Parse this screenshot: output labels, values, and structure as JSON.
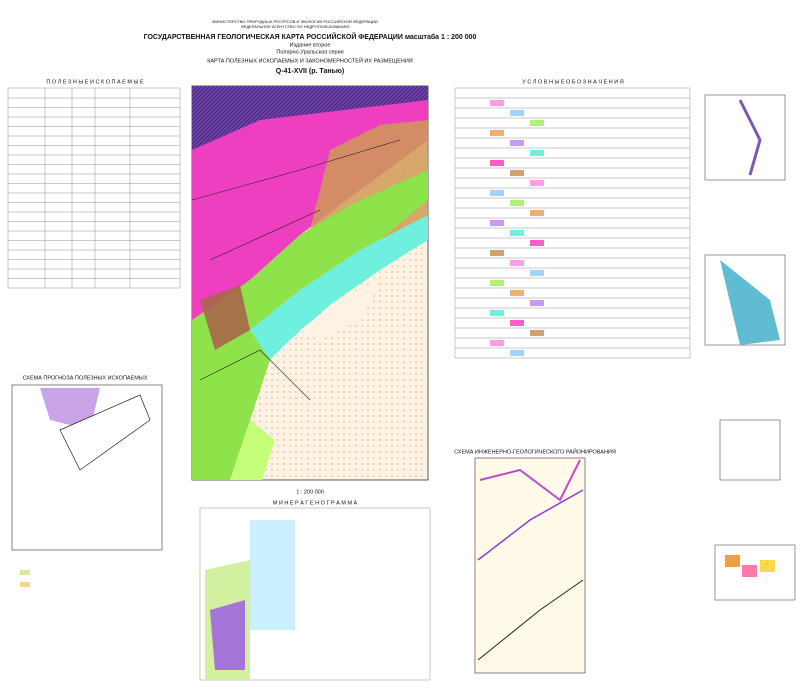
{
  "header": {
    "ministry": "МИНИСТЕРСТВО ПРИРОДНЫХ РЕСУРСОВ И ЭКОЛОГИИ РОССИЙСКОЙ ФЕДЕРАЦИИ",
    "agency": "ФЕДЕРАЛЬНОЕ АГЕНТСТВО ПО НЕДРОПОЛЬЗОВАНИЮ",
    "title": "ГОСУДАРСТВЕННАЯ ГЕОЛОГИЧЕСКАЯ КАРТА РОССИЙСКОЙ ФЕДЕРАЦИИ масштаба 1 : 200 000",
    "edition": "Издание второе",
    "series": "Полярно-Уральская серия",
    "map_title": "КАРТА ПОЛЕЗНЫХ ИСКОПАЕМЫХ И ЗАКОНОМЕРНОСТЕЙ ИХ РАЗМЕЩЕНИЯ",
    "sheet": "Q-41-XVII (р. Танью)"
  },
  "sections": {
    "minerals": "П О Л Е З Н Ы Е   И С К О П А Е М Ы Е",
    "legend": "У С Л О В Н Ы Е   О Б О З Н А Ч Е Н И Я",
    "forecast": "СХЕМА ПРОГНОЗА ПОЛЕЗНЫХ ИСКОПАЕМЫХ",
    "minerageno": "М И Н Е Р А Г Е Н О Г Р А М М А",
    "engineering": "СХЕМА ИНЖЕНЕРНО-ГЕОЛОГИЧЕСКОГО РАЙОНИРОВАНИЯ"
  },
  "map": {
    "scale": "1 : 200 000"
  }
}
